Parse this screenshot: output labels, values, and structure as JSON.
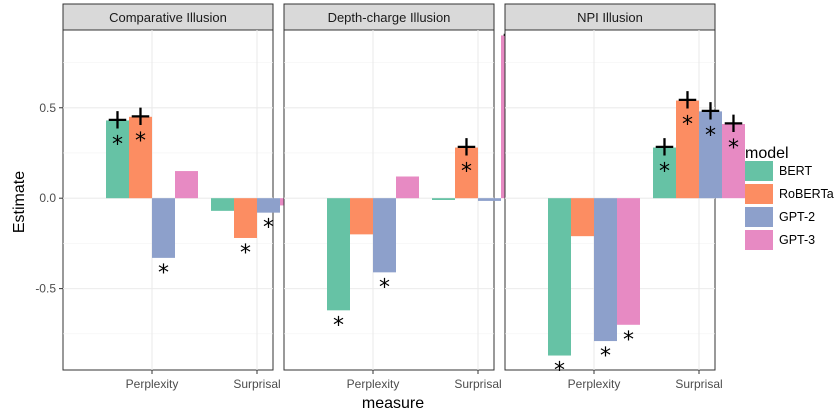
{
  "chart_data": {
    "type": "bar",
    "xlabel": "measure",
    "ylabel": "Estimate",
    "ylim": [
      -0.95,
      0.93
    ],
    "yticks": [
      -0.5,
      0.0,
      0.5
    ],
    "ytick_labels": [
      "-0.5",
      "0.0",
      "0.5"
    ],
    "grid": true,
    "legend_position": "right",
    "legend": {
      "title": "model",
      "entries": [
        {
          "name": "BERT",
          "color": "#66c2a5"
        },
        {
          "name": "RoBERTa",
          "color": "#fc8d62"
        },
        {
          "name": "GPT-2",
          "color": "#8da0cb"
        },
        {
          "name": "GPT-3",
          "color": "#e78ac3"
        }
      ]
    },
    "categories": [
      "Perplexity",
      "Surprisal"
    ],
    "panels": [
      {
        "title": "Comparative Illusion",
        "series": [
          {
            "name": "BERT",
            "values": [
              0.43,
              -0.07
            ]
          },
          {
            "name": "RoBERTa",
            "values": [
              0.45,
              -0.22
            ]
          },
          {
            "name": "GPT-2",
            "values": [
              -0.33,
              -0.08
            ]
          },
          {
            "name": "GPT-3",
            "values": [
              0.15,
              -0.04
            ]
          }
        ],
        "markers": [
          {
            "series": "BERT",
            "category": "Perplexity",
            "symbols": "+*"
          },
          {
            "series": "RoBERTa",
            "category": "Perplexity",
            "symbols": "+*"
          },
          {
            "series": "GPT-2",
            "category": "Perplexity",
            "symbols": "*"
          },
          {
            "series": "RoBERTa",
            "category": "Surprisal",
            "symbols": "*"
          },
          {
            "series": "GPT-2",
            "category": "Surprisal",
            "symbols": "*"
          }
        ]
      },
      {
        "title": "Depth-charge Illusion",
        "series": [
          {
            "name": "BERT",
            "values": [
              -0.62,
              -0.01
            ]
          },
          {
            "name": "RoBERTa",
            "values": [
              -0.2,
              0.28
            ]
          },
          {
            "name": "GPT-2",
            "values": [
              -0.41,
              -0.015
            ]
          },
          {
            "name": "GPT-3",
            "values": [
              0.12,
              0.9
            ]
          }
        ],
        "markers": [
          {
            "series": "BERT",
            "category": "Perplexity",
            "symbols": "*"
          },
          {
            "series": "GPT-2",
            "category": "Perplexity",
            "symbols": "*"
          },
          {
            "series": "RoBERTa",
            "category": "Surprisal",
            "symbols": "+*"
          },
          {
            "series": "GPT-3",
            "category": "Surprisal",
            "symbols": "+*"
          }
        ]
      },
      {
        "title": "NPI Illusion",
        "series": [
          {
            "name": "BERT",
            "values": [
              -0.87,
              0.28
            ]
          },
          {
            "name": "RoBERTa",
            "values": [
              -0.21,
              0.54
            ]
          },
          {
            "name": "GPT-2",
            "values": [
              -0.79,
              0.48
            ]
          },
          {
            "name": "GPT-3",
            "values": [
              -0.7,
              0.41
            ]
          }
        ],
        "markers": [
          {
            "series": "BERT",
            "category": "Perplexity",
            "symbols": "*"
          },
          {
            "series": "GPT-2",
            "category": "Perplexity",
            "symbols": "*"
          },
          {
            "series": "GPT-3",
            "category": "Perplexity",
            "symbols": "*"
          },
          {
            "series": "BERT",
            "category": "Surprisal",
            "symbols": "+*"
          },
          {
            "series": "RoBERTa",
            "category": "Surprisal",
            "symbols": "+*"
          },
          {
            "series": "GPT-2",
            "category": "Surprisal",
            "symbols": "+*"
          },
          {
            "series": "GPT-3",
            "category": "Surprisal",
            "symbols": "+*"
          }
        ]
      }
    ]
  }
}
